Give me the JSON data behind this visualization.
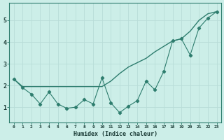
{
  "x": [
    0,
    1,
    2,
    3,
    4,
    5,
    6,
    7,
    8,
    9,
    10,
    11,
    12,
    13,
    14,
    15,
    16,
    17,
    18,
    19,
    20,
    21,
    22,
    23
  ],
  "line1": [
    2.3,
    1.95,
    1.95,
    1.95,
    1.95,
    1.95,
    1.95,
    1.95,
    1.95,
    1.95,
    1.95,
    2.2,
    2.55,
    2.85,
    3.05,
    3.25,
    3.55,
    3.8,
    4.05,
    4.15,
    4.5,
    5.0,
    5.3,
    5.4
  ],
  "line2": [
    2.3,
    1.9,
    1.6,
    1.15,
    1.7,
    1.15,
    0.95,
    1.0,
    1.35,
    1.15,
    2.35,
    1.2,
    0.75,
    1.05,
    1.3,
    2.2,
    1.8,
    2.65,
    4.05,
    4.15,
    3.4,
    4.65,
    5.1,
    5.4
  ],
  "line_color": "#2e7d6e",
  "bg_color": "#cceee8",
  "grid_color": "#b8ddd8",
  "xlabel": "Humidex (Indice chaleur)",
  "ylabel_ticks": [
    1,
    2,
    3,
    4,
    5
  ],
  "xlim": [
    -0.5,
    23.5
  ],
  "ylim": [
    0.3,
    5.8
  ],
  "xtick_labels": [
    "0",
    "1",
    "2",
    "3",
    "4",
    "5",
    "6",
    "7",
    "8",
    "9",
    "10",
    "11",
    "12",
    "13",
    "14",
    "15",
    "16",
    "17",
    "18",
    "19",
    "20",
    "21",
    "22",
    "23"
  ]
}
